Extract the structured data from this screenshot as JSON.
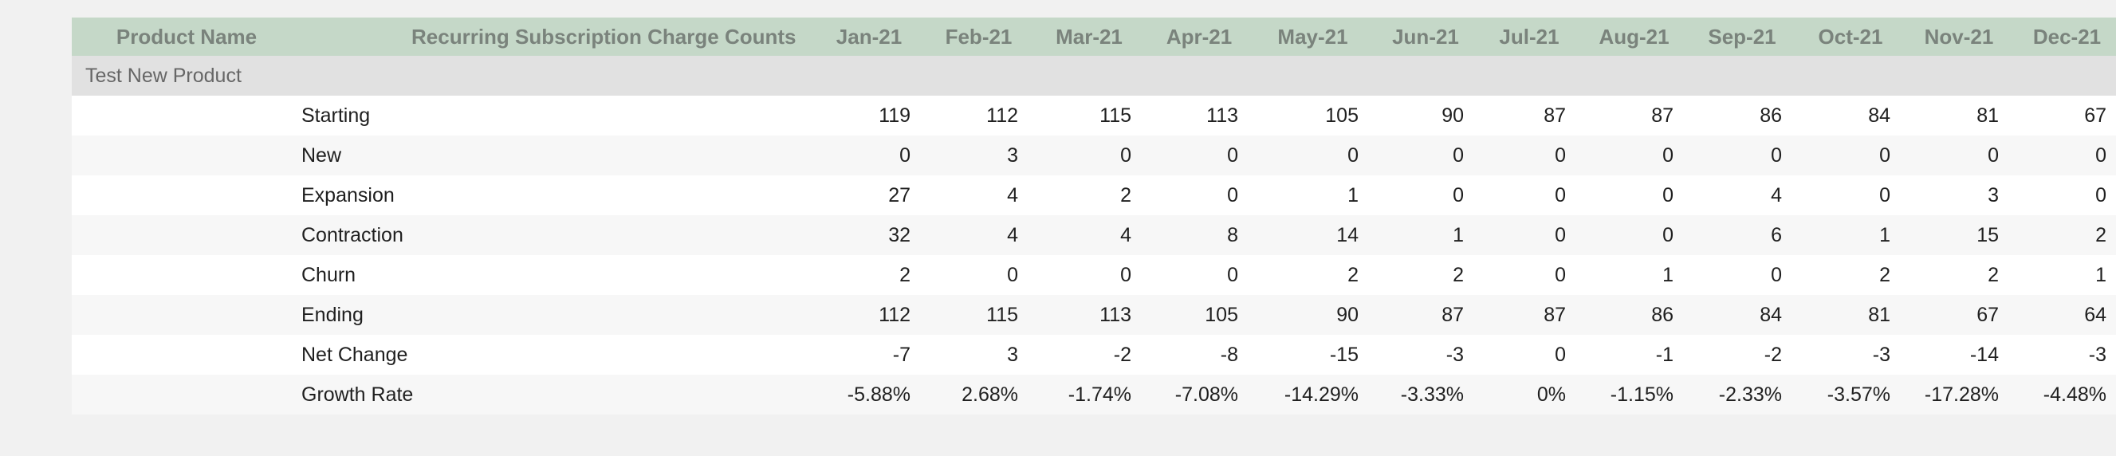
{
  "table": {
    "headers": {
      "product": "Product Name",
      "metric": "Recurring Subscription Charge Counts",
      "months": [
        "Jan-21",
        "Feb-21",
        "Mar-21",
        "Apr-21",
        "May-21",
        "Jun-21",
        "Jul-21",
        "Aug-21",
        "Sep-21",
        "Oct-21",
        "Nov-21",
        "Dec-21"
      ]
    },
    "group": "Test New Product",
    "rows": [
      {
        "label": "Starting",
        "values": [
          "119",
          "112",
          "115",
          "113",
          "105",
          "90",
          "87",
          "87",
          "86",
          "84",
          "81",
          "67"
        ]
      },
      {
        "label": "New",
        "values": [
          "0",
          "3",
          "0",
          "0",
          "0",
          "0",
          "0",
          "0",
          "0",
          "0",
          "0",
          "0"
        ]
      },
      {
        "label": "Expansion",
        "values": [
          "27",
          "4",
          "2",
          "0",
          "1",
          "0",
          "0",
          "0",
          "4",
          "0",
          "3",
          "0"
        ]
      },
      {
        "label": "Contraction",
        "values": [
          "32",
          "4",
          "4",
          "8",
          "14",
          "1",
          "0",
          "0",
          "6",
          "1",
          "15",
          "2"
        ]
      },
      {
        "label": "Churn",
        "values": [
          "2",
          "0",
          "0",
          "0",
          "2",
          "2",
          "0",
          "1",
          "0",
          "2",
          "2",
          "1"
        ]
      },
      {
        "label": "Ending",
        "values": [
          "112",
          "115",
          "113",
          "105",
          "90",
          "87",
          "87",
          "86",
          "84",
          "81",
          "67",
          "64"
        ]
      },
      {
        "label": "Net Change",
        "values": [
          "-7",
          "3",
          "-2",
          "-8",
          "-15",
          "-3",
          "0",
          "-1",
          "-2",
          "-3",
          "-14",
          "-3"
        ]
      },
      {
        "label": "Growth Rate",
        "values": [
          "-5.88%",
          "2.68%",
          "-1.74%",
          "-7.08%",
          "-14.29%",
          "-3.33%",
          "0%",
          "-1.15%",
          "-2.33%",
          "-3.57%",
          "-17.28%",
          "-4.48%"
        ]
      }
    ]
  }
}
